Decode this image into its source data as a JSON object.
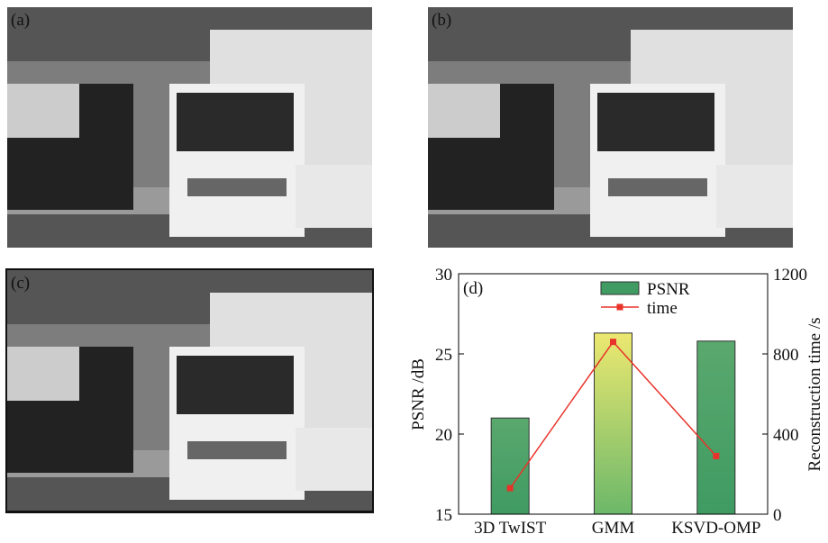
{
  "panels": [
    {
      "label": "(a)"
    },
    {
      "label": "(b)"
    },
    {
      "label": "(c)"
    }
  ],
  "chart_data": {
    "type": "bar",
    "label": "(d)",
    "categories": [
      "3D TwIST",
      "GMM",
      "KSVD-OMP"
    ],
    "series": [
      {
        "name": "PSNR",
        "color": "#3f9b62",
        "colors": [
          "#3f9b62",
          "#d6df6e",
          "#3f9b62"
        ],
        "values": [
          21,
          26.3,
          25.8
        ]
      },
      {
        "name": "time",
        "axis": "y2",
        "color": "#e8332a",
        "values": [
          130,
          860,
          290
        ]
      }
    ],
    "ylabel": "PSNR /dB",
    "y2label": "Reconstruction time /s",
    "ylim": [
      15,
      30
    ],
    "yticks": [
      15,
      20,
      25,
      30
    ],
    "y2lim": [
      0,
      1200
    ],
    "y2ticks": [
      0,
      400,
      800,
      1200
    ]
  }
}
